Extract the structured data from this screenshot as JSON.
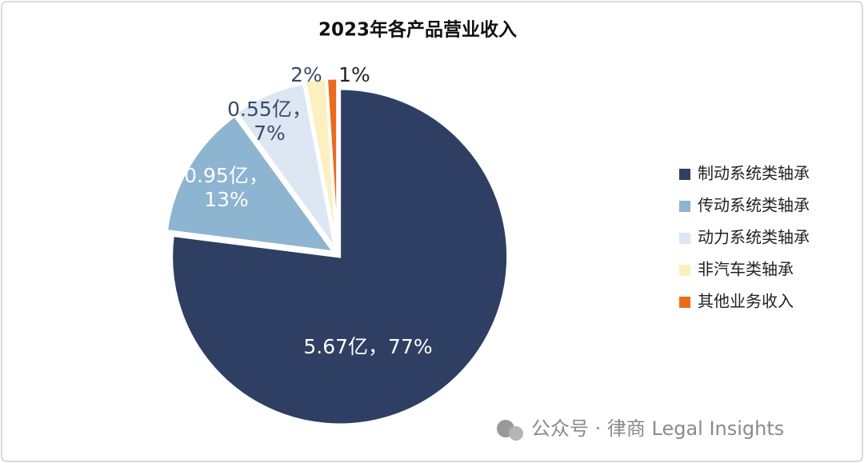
{
  "chart_data": {
    "type": "pie",
    "title": "2023年各产品营业收入",
    "categories": [
      "制动系统类轴承",
      "传动系统类轴承",
      "动力系统类轴承",
      "非汽车类轴承",
      "其他业务收入"
    ],
    "values": [
      77,
      13,
      7,
      2,
      1
    ],
    "value_labels": [
      [
        "5.67亿，77%"
      ],
      [
        "0.95亿，",
        "13%"
      ],
      [
        "0.55亿，",
        "7%"
      ],
      [
        "2%"
      ],
      [
        "1%"
      ]
    ],
    "colors": [
      "#2e3f63",
      "#8db4d0",
      "#dce7f3",
      "#fcefc0",
      "#ec6a1c"
    ],
    "legend": "right"
  },
  "watermark": "公众号 · 律商 Legal Insights"
}
